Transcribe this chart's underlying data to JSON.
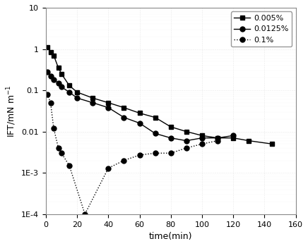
{
  "series": [
    {
      "label": "0.005%",
      "linestyle": "-",
      "marker": "s",
      "markersize": 4,
      "color": "#000000",
      "x": [
        1,
        3,
        5,
        8,
        10,
        15,
        20,
        30,
        40,
        50,
        60,
        70,
        80,
        90,
        100,
        110,
        120,
        130,
        145
      ],
      "y": [
        1.1,
        0.85,
        0.7,
        0.35,
        0.25,
        0.13,
        0.09,
        0.065,
        0.05,
        0.038,
        0.028,
        0.022,
        0.013,
        0.01,
        0.008,
        0.007,
        0.007,
        0.006,
        0.005
      ]
    },
    {
      "label": "0.0125%",
      "linestyle": "-",
      "marker": "o",
      "markersize": 5,
      "color": "#000000",
      "x": [
        1,
        3,
        5,
        8,
        10,
        15,
        20,
        30,
        40,
        50,
        60,
        70,
        80,
        90,
        100,
        110,
        120
      ],
      "y": [
        0.28,
        0.22,
        0.18,
        0.15,
        0.12,
        0.09,
        0.065,
        0.05,
        0.038,
        0.022,
        0.016,
        0.009,
        0.007,
        0.006,
        0.007,
        0.007,
        0.008
      ]
    },
    {
      "label": "0.1%",
      "linestyle": ":",
      "marker": "o",
      "markersize": 5,
      "color": "#000000",
      "x": [
        1,
        3,
        5,
        8,
        10,
        15,
        25,
        40,
        50,
        60,
        70,
        80,
        90,
        100,
        110
      ],
      "y": [
        0.08,
        0.05,
        0.012,
        0.004,
        0.003,
        0.0015,
        0.0001,
        0.0013,
        0.002,
        0.0027,
        0.003,
        0.003,
        0.004,
        0.005,
        0.006
      ]
    }
  ],
  "xlabel": "time(min)",
  "ylabel": "IFT/mN m⁻¹",
  "xlim": [
    0,
    160
  ],
  "ylim": [
    0.0001,
    10
  ],
  "xticks": [
    0,
    20,
    40,
    60,
    80,
    100,
    120,
    140,
    160
  ],
  "yticks": [
    0.0001,
    0.001,
    0.01,
    0.1,
    1.0,
    10.0
  ],
  "yticklabels": [
    "1E-4",
    "1E-3",
    "0.01",
    "0.1",
    "1",
    "10"
  ],
  "legend_loc": "upper right",
  "figsize": [
    4.36,
    3.49
  ],
  "dpi": 100
}
